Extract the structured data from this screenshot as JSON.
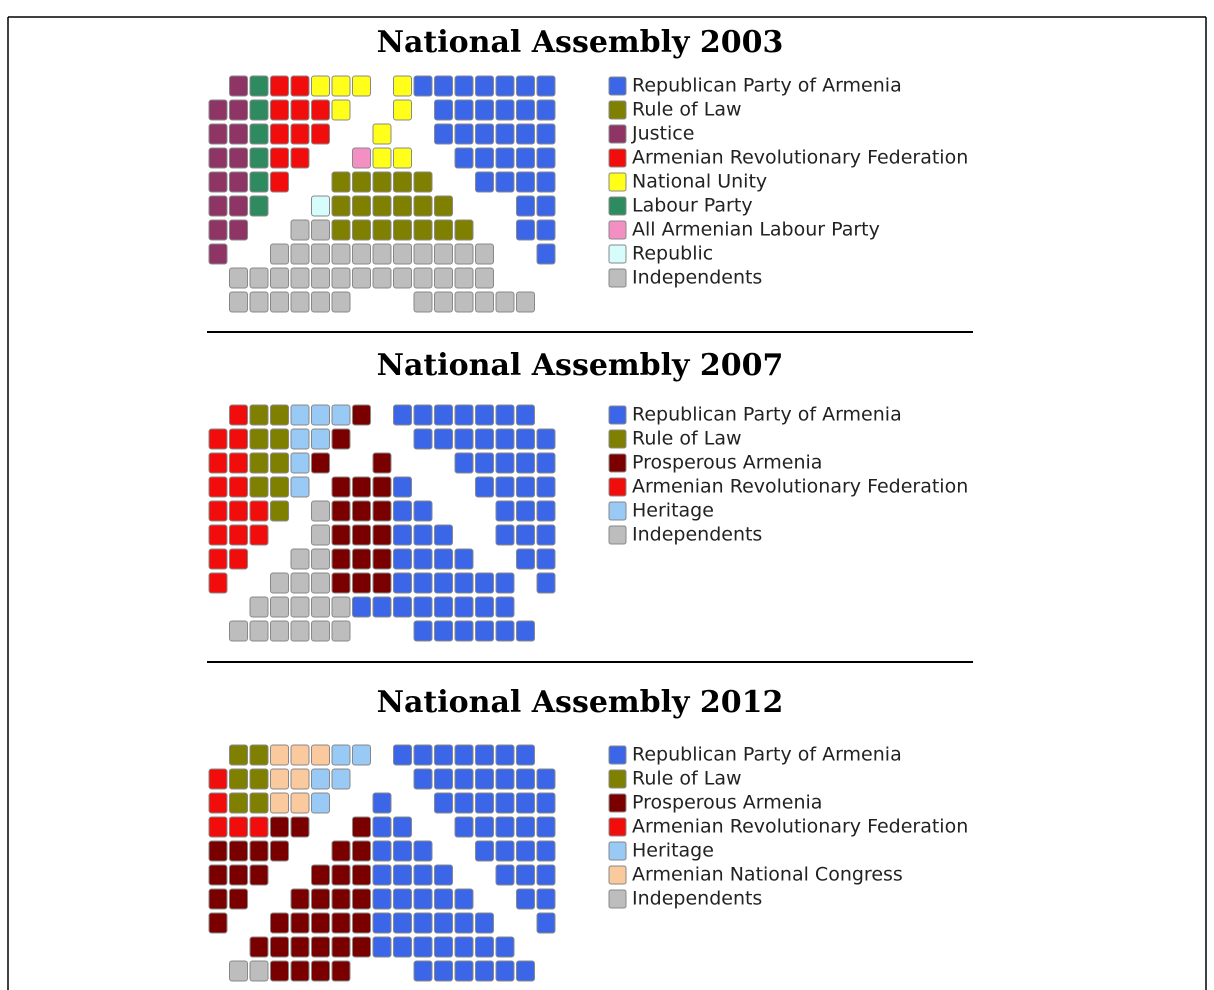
{
  "panels": [
    {
      "title": "National Assembly 2003",
      "legend": [
        {
          "label": "Republican Party of Armenia",
          "color": "#3b66e8"
        },
        {
          "label": "Rule of Law",
          "color": "#7f7f00"
        },
        {
          "label": "Justice",
          "color": "#8e3566"
        },
        {
          "label": "Armenian Revolutionary Federation",
          "color": "#f20d0d"
        },
        {
          "label": "National Unity",
          "color": "#ffff19"
        },
        {
          "label": "Labour Party",
          "color": "#2e8b5f"
        },
        {
          "label": "All Armenian Labour Party",
          "color": "#f48fc4"
        },
        {
          "label": "Republic",
          "color": "#d6fcfc"
        },
        {
          "label": "Independents",
          "color": "#bdbdbd"
        }
      ]
    },
    {
      "title": "National Assembly 2007",
      "legend": [
        {
          "label": "Republican Party of Armenia",
          "color": "#3b66e8"
        },
        {
          "label": "Rule of Law",
          "color": "#7f7f00"
        },
        {
          "label": "Prosperous Armenia",
          "color": "#7a0000"
        },
        {
          "label": "Armenian Revolutionary Federation",
          "color": "#f20d0d"
        },
        {
          "label": "Heritage",
          "color": "#99c9f5"
        },
        {
          "label": "Independents",
          "color": "#bdbdbd"
        }
      ]
    },
    {
      "title": "National Assembly 2012",
      "legend": [
        {
          "label": "Republican Party of Armenia",
          "color": "#3b66e8"
        },
        {
          "label": "Rule of Law",
          "color": "#7f7f00"
        },
        {
          "label": "Prosperous Armenia",
          "color": "#7a0000"
        },
        {
          "label": "Armenian Revolutionary Federation",
          "color": "#f20d0d"
        },
        {
          "label": "Heritage",
          "color": "#99c9f5"
        },
        {
          "label": "Armenian National Congress",
          "color": "#fac99e"
        },
        {
          "label": "Independents",
          "color": "#bdbdbd"
        }
      ]
    }
  ]
}
